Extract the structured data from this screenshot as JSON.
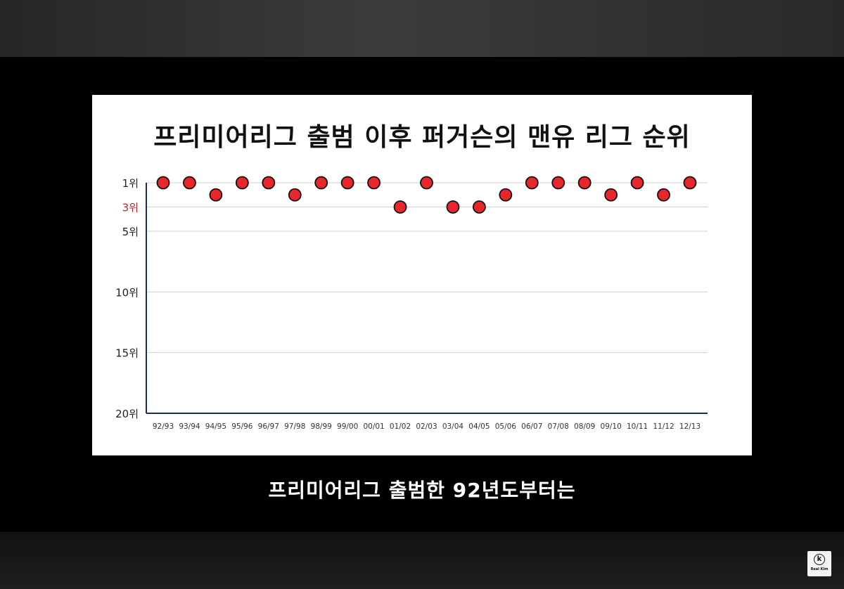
{
  "subtitle": "프리미어리그 출범한 92년도부터는",
  "logo": {
    "glyph": "k",
    "text": "Real Kim"
  },
  "colors": {
    "marker": "#e8262b",
    "highlight_tick": "#b5262b",
    "baseline": "#1c2a57"
  },
  "chart_data": {
    "type": "scatter",
    "title": "프리미어리그 출범 이후 퍼거슨의 맨유 리그 순위",
    "categories": [
      "92/93",
      "93/94",
      "94/95",
      "95/96",
      "96/97",
      "97/98",
      "98/99",
      "99/00",
      "00/01",
      "01/02",
      "02/03",
      "03/04",
      "04/05",
      "05/06",
      "06/07",
      "07/08",
      "08/09",
      "09/10",
      "10/11",
      "11/12",
      "12/13"
    ],
    "values": [
      1,
      1,
      2,
      1,
      1,
      2,
      1,
      1,
      1,
      3,
      1,
      3,
      3,
      2,
      1,
      1,
      1,
      2,
      1,
      2,
      1
    ],
    "y_ticks": [
      {
        "value": 1,
        "label": "1위"
      },
      {
        "value": 3,
        "label": "3위",
        "highlight": true
      },
      {
        "value": 5,
        "label": "5위"
      },
      {
        "value": 10,
        "label": "10위"
      },
      {
        "value": 15,
        "label": "15위"
      },
      {
        "value": 20,
        "label": "20위"
      }
    ],
    "ylim": [
      1,
      20
    ],
    "y_inverted": true,
    "grid": true,
    "xlabel": "",
    "ylabel": ""
  }
}
